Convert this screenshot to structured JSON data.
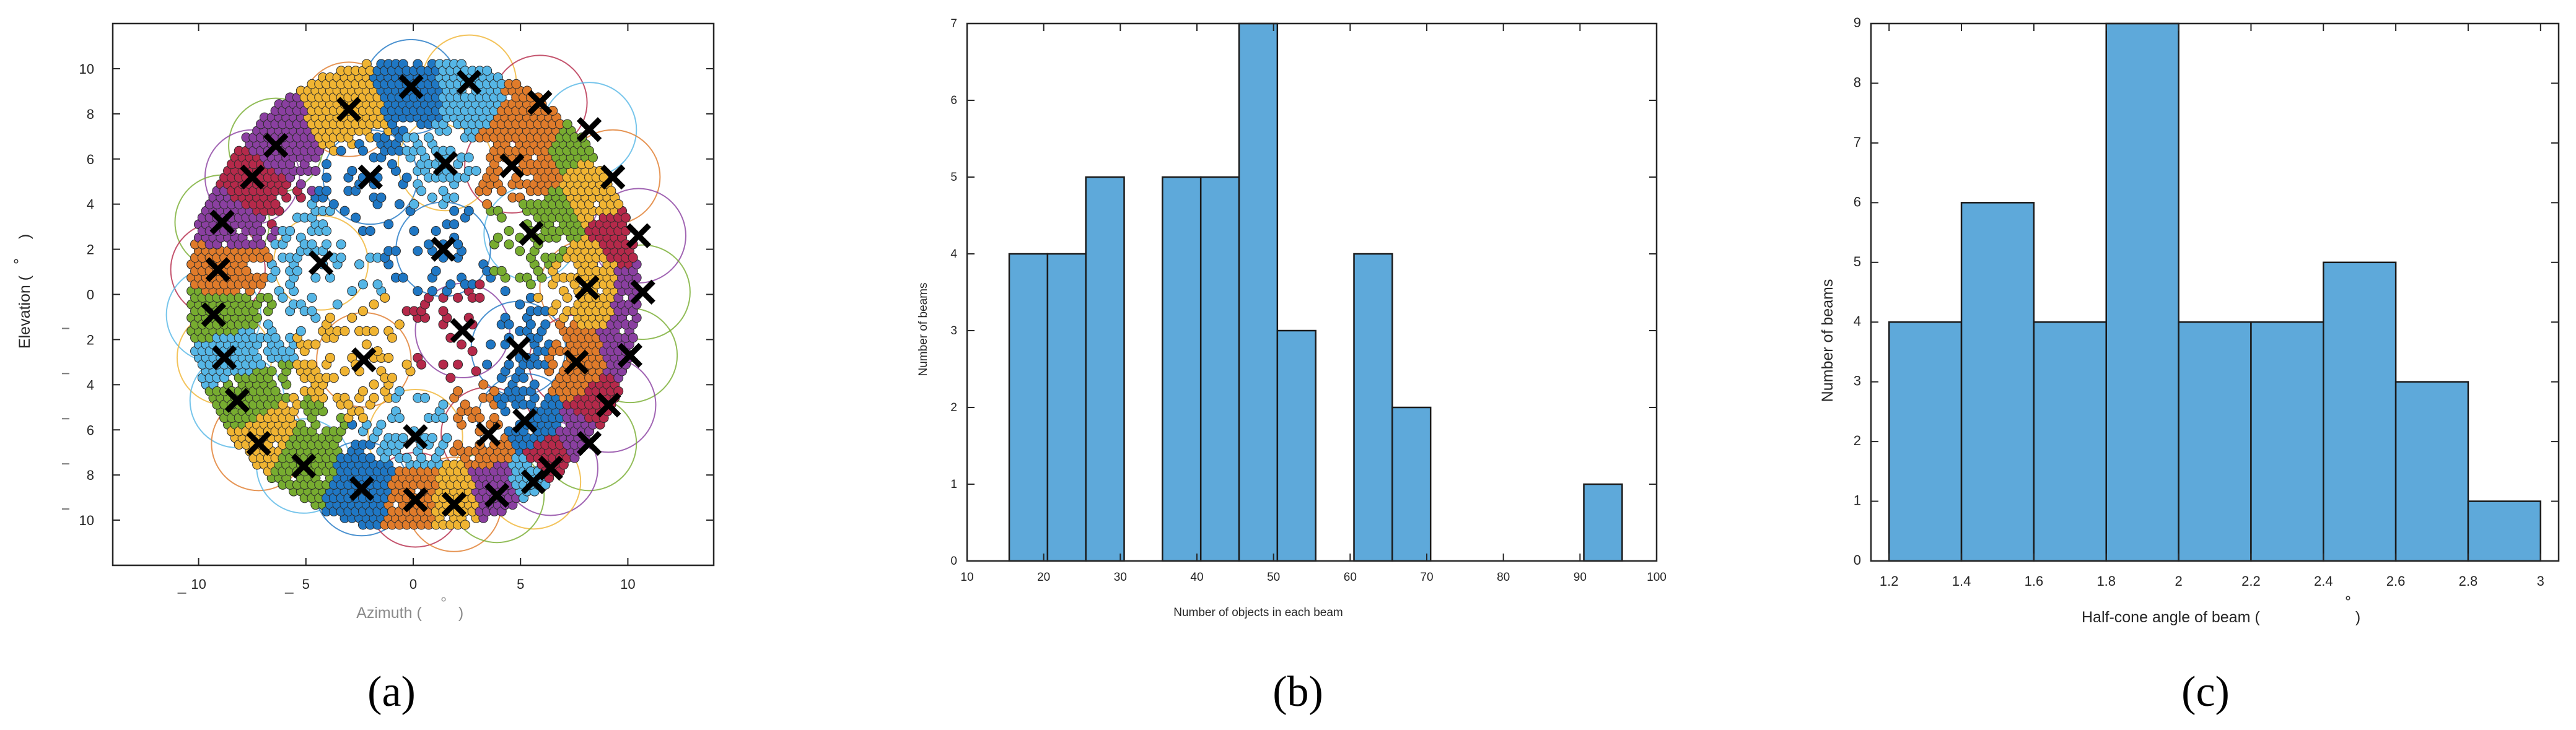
{
  "colors": {
    "bar_fill": "#5ea9da",
    "cluster_palette": [
      "#1f77c4",
      "#55b6e6",
      "#e07b2a",
      "#f0b432",
      "#8a3fa0",
      "#77ac30",
      "#b5294a"
    ],
    "beam_marker": "#000000"
  },
  "panels": {
    "a": {
      "label": "(a)",
      "xlabel": "Azimuth (",
      "ylabel": "Elevation (",
      "unit_symbol": "°",
      "closing_paren": ")"
    },
    "b": {
      "label": "(b)"
    },
    "c": {
      "label": "(c)",
      "xlabel_unit": "°",
      "xlabel_close": ")"
    }
  },
  "chart_data": [
    {
      "type": "scatter",
      "panel": "a",
      "xlabel": "Azimuth (°)",
      "ylabel": "Elevation (°)",
      "xlim": [
        -14,
        14
      ],
      "ylim": [
        -12,
        12
      ],
      "xticks": [
        -10,
        -5,
        0,
        5,
        10
      ],
      "xtick_labels": [
        "10",
        "5",
        "0",
        "5",
        "10"
      ],
      "yticks": [
        10,
        8,
        6,
        4,
        2,
        0,
        -2,
        -4,
        -6,
        -8,
        -10
      ],
      "ytick_labels": [
        "10",
        "8",
        "6",
        "4",
        "2",
        "0",
        "2",
        "4",
        "6",
        "8",
        "10"
      ],
      "field_of_regard_radius": 10.5,
      "beam_centers": [
        {
          "x": -0.1,
          "y": 9.2
        },
        {
          "x": 2.6,
          "y": 9.4
        },
        {
          "x": 5.9,
          "y": 8.5
        },
        {
          "x": -3.0,
          "y": 8.2
        },
        {
          "x": -6.4,
          "y": 6.6
        },
        {
          "x": 8.2,
          "y": 7.3
        },
        {
          "x": -7.5,
          "y": 5.2
        },
        {
          "x": -2.0,
          "y": 5.2
        },
        {
          "x": 1.5,
          "y": 5.8
        },
        {
          "x": 4.6,
          "y": 5.7
        },
        {
          "x": 9.3,
          "y": 5.2
        },
        {
          "x": -8.9,
          "y": 3.2
        },
        {
          "x": 5.5,
          "y": 2.7
        },
        {
          "x": 10.5,
          "y": 2.6
        },
        {
          "x": 1.4,
          "y": 2.0
        },
        {
          "x": -4.3,
          "y": 1.4
        },
        {
          "x": -9.1,
          "y": 1.1
        },
        {
          "x": 8.1,
          "y": 0.3
        },
        {
          "x": 10.7,
          "y": 0.1
        },
        {
          "x": -9.3,
          "y": -0.9
        },
        {
          "x": 2.3,
          "y": -1.6
        },
        {
          "x": 4.9,
          "y": -2.4
        },
        {
          "x": -8.8,
          "y": -2.8
        },
        {
          "x": 7.6,
          "y": -3.0
        },
        {
          "x": -2.3,
          "y": -2.9
        },
        {
          "x": 10.1,
          "y": -2.7
        },
        {
          "x": -8.2,
          "y": -4.7
        },
        {
          "x": 9.1,
          "y": -4.9
        },
        {
          "x": 5.2,
          "y": -5.6
        },
        {
          "x": 0.1,
          "y": -6.3
        },
        {
          "x": 3.5,
          "y": -6.2
        },
        {
          "x": -7.2,
          "y": -6.6
        },
        {
          "x": 8.2,
          "y": -6.6
        },
        {
          "x": -5.1,
          "y": -7.6
        },
        {
          "x": 6.4,
          "y": -7.7
        },
        {
          "x": -2.4,
          "y": -8.6
        },
        {
          "x": 5.6,
          "y": -8.3
        },
        {
          "x": 0.1,
          "y": -9.1
        },
        {
          "x": 1.9,
          "y": -9.3
        },
        {
          "x": 3.9,
          "y": -8.9
        }
      ]
    },
    {
      "type": "bar",
      "panel": "b",
      "title": "",
      "xlabel": "Number of objects in each beam",
      "ylabel": "Number of beams",
      "xlim": [
        10,
        100
      ],
      "ylim": [
        0,
        7
      ],
      "xticks": [
        10,
        20,
        30,
        40,
        50,
        60,
        70,
        80,
        90,
        100
      ],
      "yticks": [
        0,
        1,
        2,
        3,
        4,
        5,
        6,
        7
      ],
      "bin_edges": [
        15.5,
        20.5,
        25.5,
        30.5,
        35.5,
        40.5,
        45.5,
        50.5,
        55.5,
        60.5,
        65.5,
        70.5,
        75.5,
        80.5,
        85.5,
        90.5,
        95.5
      ],
      "counts": [
        4,
        4,
        5,
        0,
        5,
        5,
        7,
        3,
        0,
        4,
        2,
        0,
        0,
        0,
        0,
        1
      ]
    },
    {
      "type": "bar",
      "panel": "c",
      "title": "",
      "xlabel": "Half-cone angle of beam (°)",
      "ylabel": "Number of beams",
      "xlim": [
        1.15,
        3.05
      ],
      "ylim": [
        0,
        9
      ],
      "xticks": [
        1.2,
        1.4,
        1.6,
        1.8,
        2,
        2.2,
        2.4,
        2.6,
        2.8,
        3
      ],
      "xtick_labels": [
        "1.2",
        "1.4",
        "1.6",
        "1.8",
        "2",
        "2.2",
        "2.4",
        "2.6",
        "2.8",
        "3"
      ],
      "yticks": [
        0,
        1,
        2,
        3,
        4,
        5,
        6,
        7,
        8,
        9
      ],
      "bin_edges": [
        1.2,
        1.4,
        1.6,
        1.8,
        2.0,
        2.2,
        2.4,
        2.6,
        2.8,
        3.0
      ],
      "counts": [
        4,
        6,
        4,
        9,
        4,
        4,
        5,
        3,
        1
      ]
    }
  ]
}
